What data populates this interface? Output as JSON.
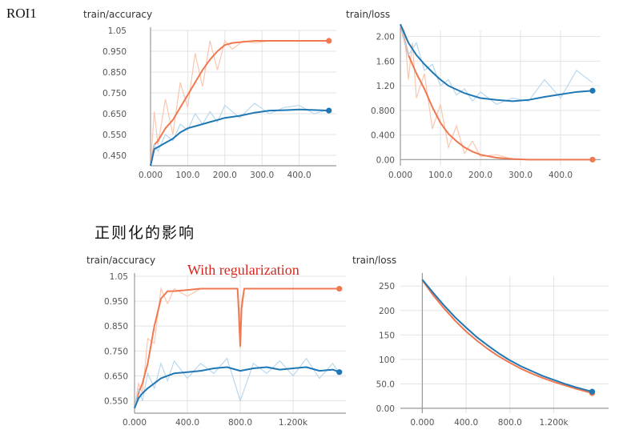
{
  "labels": {
    "roi": "ROI1",
    "caption": "正则化的影响",
    "annotation": "With regularization"
  },
  "colors": {
    "train": "#f07850",
    "train_raw": "#f9c6b0",
    "val": "#1f77b4",
    "val_raw": "#b8d8ee",
    "grid": "#e3e3e3",
    "axis": "#999999"
  },
  "chart_data": [
    {
      "type": "line",
      "title": "train/accuracy",
      "xlim": [
        0,
        500
      ],
      "ylim": [
        0.4,
        1.05
      ],
      "xticks": [
        0,
        100,
        200,
        300,
        400
      ],
      "xtick_labels": [
        "0.000",
        "100.0",
        "200.0",
        "300.0",
        "400.0"
      ],
      "yticks": [
        0.45,
        0.55,
        0.65,
        0.75,
        0.85,
        0.95,
        1.05
      ],
      "ytick_labels": [
        "0.450",
        "0.550",
        "0.650",
        "0.750",
        "0.850",
        "0.950",
        "1.05"
      ],
      "grid": true,
      "series": [
        {
          "color_key": "train",
          "x": [
            0,
            10,
            20,
            40,
            60,
            80,
            100,
            120,
            140,
            160,
            180,
            200,
            220,
            250,
            280,
            320,
            360,
            400,
            440,
            480
          ],
          "y": [
            0.4,
            0.5,
            0.52,
            0.58,
            0.62,
            0.68,
            0.74,
            0.8,
            0.86,
            0.91,
            0.95,
            0.98,
            0.99,
            0.995,
            1.0,
            1.0,
            1.0,
            1.0,
            1.0,
            1.0
          ],
          "raw_y": [
            0.4,
            0.66,
            0.5,
            0.72,
            0.55,
            0.8,
            0.68,
            0.94,
            0.78,
            1.0,
            0.86,
            1.0,
            0.96,
            1.0,
            0.99,
            1.0,
            1.0,
            1.0,
            1.0,
            1.0
          ]
        },
        {
          "color_key": "val",
          "x": [
            0,
            10,
            20,
            40,
            60,
            80,
            100,
            120,
            140,
            160,
            180,
            200,
            240,
            280,
            320,
            360,
            400,
            440,
            480
          ],
          "y": [
            0.4,
            0.48,
            0.49,
            0.51,
            0.53,
            0.56,
            0.58,
            0.59,
            0.6,
            0.61,
            0.62,
            0.63,
            0.64,
            0.655,
            0.665,
            0.667,
            0.67,
            0.668,
            0.665
          ],
          "raw_y": [
            0.4,
            0.5,
            0.47,
            0.55,
            0.52,
            0.6,
            0.57,
            0.65,
            0.6,
            0.66,
            0.61,
            0.69,
            0.63,
            0.7,
            0.65,
            0.68,
            0.69,
            0.65,
            0.67
          ]
        }
      ]
    },
    {
      "type": "line",
      "title": "train/loss",
      "xlim": [
        0,
        500
      ],
      "ylim": [
        -0.1,
        2.1
      ],
      "xticks": [
        0,
        100,
        200,
        300,
        400
      ],
      "xtick_labels": [
        "0.000",
        "100.0",
        "200.0",
        "300.0",
        "400.0"
      ],
      "yticks": [
        0.0,
        0.4,
        0.8,
        1.2,
        1.6,
        2.0
      ],
      "ytick_labels": [
        "0.00",
        "0.400",
        "0.800",
        "1.20",
        "1.60",
        "2.00"
      ],
      "grid": true,
      "series": [
        {
          "color_key": "train",
          "x": [
            0,
            10,
            20,
            30,
            40,
            60,
            80,
            100,
            120,
            140,
            160,
            180,
            200,
            240,
            280,
            320,
            360,
            400,
            440,
            480
          ],
          "y": [
            2.2,
            1.95,
            1.7,
            1.55,
            1.4,
            1.15,
            0.85,
            0.6,
            0.42,
            0.3,
            0.2,
            0.13,
            0.08,
            0.03,
            0.01,
            0.0,
            0.0,
            0.0,
            0.0,
            0.0
          ],
          "raw_y": [
            2.2,
            2.1,
            1.3,
            1.9,
            1.0,
            1.4,
            0.5,
            0.9,
            0.2,
            0.55,
            0.1,
            0.3,
            0.05,
            0.08,
            0.01,
            0.0,
            0.0,
            0.0,
            0.0,
            0.0
          ]
        },
        {
          "color_key": "val",
          "x": [
            0,
            20,
            40,
            60,
            80,
            100,
            120,
            140,
            160,
            180,
            200,
            240,
            280,
            320,
            360,
            400,
            440,
            480
          ],
          "y": [
            2.2,
            1.9,
            1.7,
            1.55,
            1.42,
            1.3,
            1.2,
            1.14,
            1.08,
            1.04,
            1.0,
            0.97,
            0.95,
            0.97,
            1.02,
            1.06,
            1.1,
            1.12
          ],
          "raw_y": [
            2.2,
            1.7,
            1.9,
            1.45,
            1.55,
            1.2,
            1.3,
            1.05,
            1.15,
            0.95,
            1.1,
            0.9,
            1.0,
            0.95,
            1.3,
            1.0,
            1.45,
            1.25
          ]
        }
      ]
    },
    {
      "type": "line",
      "title": "train/accuracy",
      "xlim": [
        0,
        1600
      ],
      "ylim": [
        0.5,
        1.05
      ],
      "xticks": [
        0,
        400,
        800,
        1200
      ],
      "xtick_labels": [
        "0.000",
        "400.0",
        "800.0",
        "1.200k"
      ],
      "yticks": [
        0.55,
        0.65,
        0.75,
        0.85,
        0.95,
        1.05
      ],
      "ytick_labels": [
        "0.550",
        "0.650",
        "0.750",
        "0.850",
        "0.950",
        "1.05"
      ],
      "grid": true,
      "series": [
        {
          "color_key": "train",
          "x": [
            0,
            30,
            60,
            100,
            150,
            200,
            250,
            300,
            400,
            500,
            600,
            700,
            780,
            790,
            800,
            810,
            830,
            900,
            1000,
            1200,
            1400,
            1550
          ],
          "y": [
            0.52,
            0.58,
            0.62,
            0.7,
            0.85,
            0.96,
            0.99,
            0.99,
            0.995,
            1.0,
            1.0,
            1.0,
            1.0,
            0.9,
            0.77,
            0.92,
            1.0,
            1.0,
            1.0,
            1.0,
            1.0,
            1.0
          ],
          "raw_y": [
            0.52,
            0.62,
            0.58,
            0.8,
            0.78,
            1.0,
            0.94,
            1.0,
            0.97,
            1.0,
            1.0,
            1.0,
            1.0,
            0.85,
            0.76,
            0.95,
            1.0,
            1.0,
            1.0,
            1.0,
            1.0,
            1.0
          ]
        },
        {
          "color_key": "val",
          "x": [
            0,
            30,
            60,
            100,
            150,
            200,
            250,
            300,
            400,
            500,
            600,
            700,
            800,
            900,
            1000,
            1100,
            1200,
            1300,
            1400,
            1500,
            1550
          ],
          "y": [
            0.52,
            0.56,
            0.58,
            0.6,
            0.62,
            0.64,
            0.65,
            0.66,
            0.665,
            0.67,
            0.68,
            0.685,
            0.67,
            0.68,
            0.685,
            0.675,
            0.68,
            0.685,
            0.67,
            0.675,
            0.665
          ],
          "raw_y": [
            0.52,
            0.6,
            0.55,
            0.66,
            0.6,
            0.7,
            0.63,
            0.71,
            0.64,
            0.7,
            0.66,
            0.72,
            0.55,
            0.7,
            0.66,
            0.71,
            0.65,
            0.72,
            0.64,
            0.7,
            0.66
          ]
        }
      ]
    },
    {
      "type": "line",
      "title": "train/loss",
      "xlim": [
        -200,
        1700
      ],
      "ylim": [
        -10,
        270
      ],
      "xticks": [
        0,
        400,
        800,
        1200
      ],
      "xtick_labels": [
        "0.000",
        "400.0",
        "800.0",
        "1.200k"
      ],
      "yticks": [
        0,
        50,
        100,
        150,
        200,
        250
      ],
      "ytick_labels": [
        "0.00",
        "50.0",
        "100",
        "150",
        "200",
        "250"
      ],
      "grid": true,
      "series": [
        {
          "color_key": "train",
          "x": [
            0,
            100,
            200,
            300,
            400,
            500,
            600,
            700,
            800,
            900,
            1000,
            1100,
            1200,
            1300,
            1400,
            1500,
            1550
          ],
          "y": [
            262,
            231,
            204,
            179,
            157,
            138,
            121,
            106,
            93,
            81,
            71,
            62,
            54,
            47,
            40,
            34,
            31
          ]
        },
        {
          "color_key": "val",
          "x": [
            0,
            100,
            200,
            300,
            400,
            500,
            600,
            700,
            800,
            900,
            1000,
            1100,
            1200,
            1300,
            1400,
            1500,
            1550
          ],
          "y": [
            263,
            236,
            210,
            186,
            165,
            145,
            128,
            112,
            98,
            86,
            76,
            66,
            58,
            50,
            43,
            37,
            34
          ]
        }
      ]
    }
  ]
}
